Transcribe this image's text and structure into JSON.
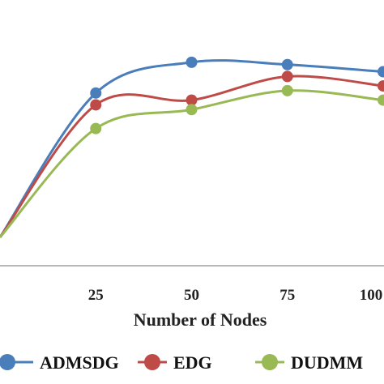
{
  "chart_data": {
    "type": "line",
    "xlabel": "Number of Nodes",
    "ylabel": "",
    "categories": [
      "0",
      "25",
      "50",
      "75",
      "100"
    ],
    "tick_labels": [
      "25",
      "50",
      "75",
      "100"
    ],
    "x": [
      0,
      25,
      50,
      75,
      100
    ],
    "ylim": [
      0,
      1
    ],
    "xlim": [
      0,
      100
    ],
    "legend_position": "bottom",
    "smooth": true,
    "series": [
      {
        "name": "ADMSDG",
        "color": "#4a7ebb",
        "values": [
          0.12,
          0.73,
          0.86,
          0.85,
          0.82
        ]
      },
      {
        "name": "EDG",
        "color": "#be4b48",
        "values": [
          0.12,
          0.68,
          0.7,
          0.8,
          0.76
        ]
      },
      {
        "name": "DUDMM",
        "color": "#98b954",
        "values": [
          0.12,
          0.58,
          0.66,
          0.74,
          0.7
        ]
      }
    ]
  }
}
